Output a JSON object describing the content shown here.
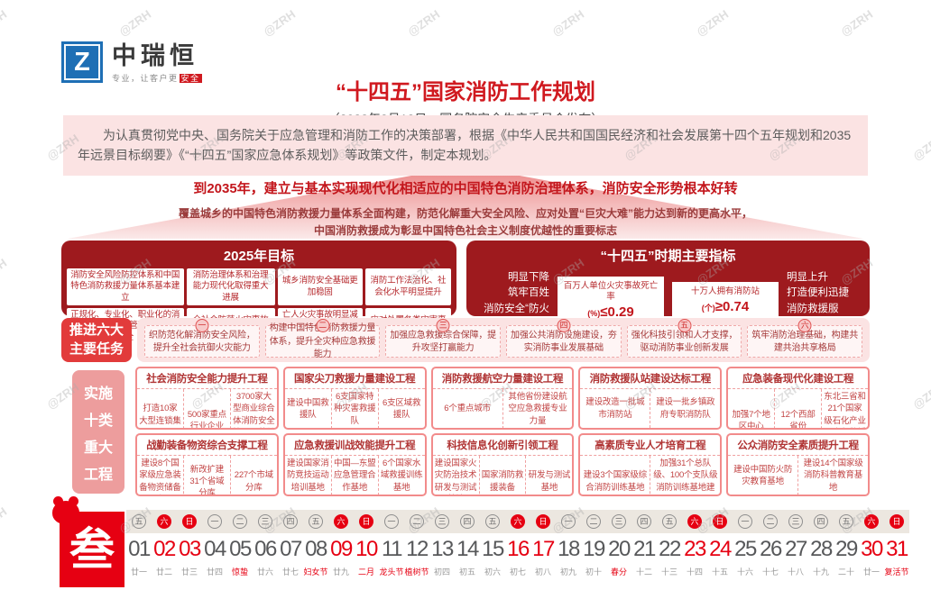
{
  "watermark": {
    "text": "@ZRH"
  },
  "logo": {
    "symbol": "Z",
    "name": "中瑞恒",
    "tagline_gray": "专业，让客户更",
    "tagline_red": "安全"
  },
  "header": {
    "title": "“十四五”国家消防工作规划",
    "subtitle": "（2022年2月12日，国务院安全生产委员会发布）"
  },
  "intro": "为认真贯彻党中央、国务院关于应急管理和消防工作的决策部署，根据《中华人民共和国国民经济和社会发展第十四个五年规划和2035年远景目标纲要》《“十四五”国家应急体系规划》等政策文件，制定本规划。",
  "vision": {
    "headline": "到2035年，建立与基本实现现代化相适应的中国特色消防治理体系，消防安全形势根本好转",
    "line1": "覆盖城乡的中国特色消防救援力量体系全面构建，防范化解重大安全风险、应对处置“巨灾大难”能力达到新的更高水平，",
    "line2": "中国消防救援成为彰显中国特色社会主义制度优越性的重要标志"
  },
  "goals2025": {
    "title": "2025年目标",
    "items": [
      "消防安全风险防控体系和中国特色消防救援力量体系基本建立",
      "消防治理体系和治理能力现代化取得重大进展",
      "城乡消防安全基础更加稳固",
      "消防工作法治化、社会化水平明显提升",
      "正规化、专业化、职业化的消防救援队伍建设管理体制基本健全",
      "全社会防范火灾事故的能力显著增强",
      "亡人火灾事故明显减少、重特大火灾事故有效遏制",
      "应对处置各类灾害事故的能力大幅提升"
    ]
  },
  "indicators": {
    "title": "“十四五”时期主要指标",
    "left": [
      "明显下降",
      "筑牢百姓",
      "消防安全“防火墙”"
    ],
    "metrics": [
      {
        "label": "百万人单位火灾事故死亡率",
        "unit": "(%)",
        "value": "≤0.29"
      },
      {
        "label": "十万人拥有消防站",
        "unit": "(个)",
        "value": "≥0.74"
      }
    ],
    "right": [
      "明显上升",
      "打造便利迅捷",
      "消防救援服务“朋友圈”"
    ]
  },
  "tasks": {
    "label_line1": "推进六大",
    "label_line2": "主要任务",
    "items": [
      {
        "num": "一",
        "text": "织防范化解消防安全风险，提升全社会抗御火灾能力"
      },
      {
        "num": "二",
        "text": "构建中国特色消防救援力量体系，提升全灾种应急救援能力"
      },
      {
        "num": "三",
        "text": "加强应急救援综合保障，提升攻坚打赢能力"
      },
      {
        "num": "四",
        "text": "加强公共消防设施建设，夯实消防事业发展基础"
      },
      {
        "num": "五",
        "text": "强化科技引领和人才支撑，驱动消防事业创新发展"
      },
      {
        "num": "六",
        "text": "筑牢消防治理基础，构建共建共治共享格局"
      }
    ]
  },
  "projects": {
    "label_lines": [
      "实施",
      "十类",
      "重大",
      "工程"
    ],
    "row1": [
      {
        "title": "社会消防安全能力提升工程",
        "cells": [
          "打造10家大型连锁集团",
          "500家重点行业企业",
          "3700家大型商业综合体消防安全管理示范单位"
        ]
      },
      {
        "title": "国家尖刀救援力量建设工程",
        "cells": [
          "建设中国救援队",
          "6支国家特种灾害救援队",
          "6支区域救援队"
        ]
      },
      {
        "title": "消防救援航空力量建设工程",
        "cells": [
          "6个重点城市",
          "其他省份建设航空应急救援专业力量"
        ]
      },
      {
        "title": "消防救援队站建设达标工程",
        "cells": [
          "建设改造一批城市消防站",
          "建设一批乡镇政府专职消防队"
        ]
      },
      {
        "title": "应急装备现代化建设工程",
        "cells": [
          "加强7个地区中心",
          "12个西部省份",
          "东北三省和21个国家级石化产业园应急救援装备建设"
        ]
      }
    ],
    "row2": [
      {
        "title": "战勤装备物资综合支撑工程",
        "cells": [
          "建设8个国家级应急装备物资储备库",
          "新改扩建31个省域分库",
          "227个市域分库"
        ]
      },
      {
        "title": "应急救援训战效能提升工程",
        "cells": [
          "建设国家消防竞技运动培训基地",
          "中国—东盟应急管理合作基地",
          "6个国家水域救援训练基地"
        ]
      },
      {
        "title": "科技信息化创新引领工程",
        "cells": [
          "建设国家火灾防治技术研发与测试基地",
          "国家消防救援装备",
          "研发与测试基地"
        ]
      },
      {
        "title": "高素质专业人才培育工程",
        "cells": [
          "建设3个国家级综合消防训练基地",
          "加强31个总队级、100个支队级消防训练基地建设"
        ]
      },
      {
        "title": "公众消防安全素质提升工程",
        "cells": [
          "建设中国防火防灾教育基地",
          "建设14个国家级消防科普教育基地"
        ]
      }
    ]
  },
  "calendar": {
    "month_char": "叁",
    "days": [
      {
        "num": "01",
        "week": "五",
        "lunar": "廿一",
        "weekend": false,
        "festival": false
      },
      {
        "num": "02",
        "week": "六",
        "lunar": "廿二",
        "weekend": true,
        "festival": false
      },
      {
        "num": "03",
        "week": "日",
        "lunar": "廿三",
        "weekend": true,
        "festival": false
      },
      {
        "num": "04",
        "week": "一",
        "lunar": "廿四",
        "weekend": false,
        "festival": false
      },
      {
        "num": "05",
        "week": "二",
        "lunar": "惊蛰",
        "weekend": false,
        "festival": true
      },
      {
        "num": "06",
        "week": "三",
        "lunar": "廿六",
        "weekend": false,
        "festival": false
      },
      {
        "num": "07",
        "week": "四",
        "lunar": "廿七",
        "weekend": false,
        "festival": false
      },
      {
        "num": "08",
        "week": "五",
        "lunar": "妇女节",
        "weekend": false,
        "festival": true
      },
      {
        "num": "09",
        "week": "六",
        "lunar": "廿九",
        "weekend": true,
        "festival": false
      },
      {
        "num": "10",
        "week": "日",
        "lunar": "二月",
        "weekend": true,
        "festival": true
      },
      {
        "num": "11",
        "week": "一",
        "lunar": "龙头节",
        "weekend": false,
        "festival": true
      },
      {
        "num": "12",
        "week": "二",
        "lunar": "植树节",
        "weekend": false,
        "festival": true
      },
      {
        "num": "13",
        "week": "三",
        "lunar": "初四",
        "weekend": false,
        "festival": false
      },
      {
        "num": "14",
        "week": "四",
        "lunar": "初五",
        "weekend": false,
        "festival": false
      },
      {
        "num": "15",
        "week": "五",
        "lunar": "初六",
        "weekend": false,
        "festival": false
      },
      {
        "num": "16",
        "week": "六",
        "lunar": "初七",
        "weekend": true,
        "festival": false
      },
      {
        "num": "17",
        "week": "日",
        "lunar": "初八",
        "weekend": true,
        "festival": false
      },
      {
        "num": "18",
        "week": "一",
        "lunar": "初九",
        "weekend": false,
        "festival": false
      },
      {
        "num": "19",
        "week": "二",
        "lunar": "初十",
        "weekend": false,
        "festival": false
      },
      {
        "num": "20",
        "week": "三",
        "lunar": "春分",
        "weekend": false,
        "festival": true
      },
      {
        "num": "21",
        "week": "四",
        "lunar": "十二",
        "weekend": false,
        "festival": false
      },
      {
        "num": "22",
        "week": "五",
        "lunar": "十三",
        "weekend": false,
        "festival": false
      },
      {
        "num": "23",
        "week": "六",
        "lunar": "十四",
        "weekend": true,
        "festival": false
      },
      {
        "num": "24",
        "week": "日",
        "lunar": "十五",
        "weekend": true,
        "festival": false
      },
      {
        "num": "25",
        "week": "一",
        "lunar": "十六",
        "weekend": false,
        "festival": false
      },
      {
        "num": "26",
        "week": "二",
        "lunar": "十七",
        "weekend": false,
        "festival": false
      },
      {
        "num": "27",
        "week": "三",
        "lunar": "十八",
        "weekend": false,
        "festival": false
      },
      {
        "num": "28",
        "week": "四",
        "lunar": "十九",
        "weekend": false,
        "festival": false
      },
      {
        "num": "29",
        "week": "五",
        "lunar": "二十",
        "weekend": false,
        "festival": false
      },
      {
        "num": "30",
        "week": "六",
        "lunar": "廿一",
        "weekend": true,
        "festival": false
      },
      {
        "num": "31",
        "week": "日",
        "lunar": "复活节",
        "weekend": true,
        "festival": true
      }
    ]
  },
  "colors": {
    "accent_red": "#E60012",
    "title_red": "#D0191F",
    "panel_dark_red": "#9E1A1E",
    "logo_blue": "#1E6FB5",
    "pink_bg": "#FBE3E3"
  }
}
